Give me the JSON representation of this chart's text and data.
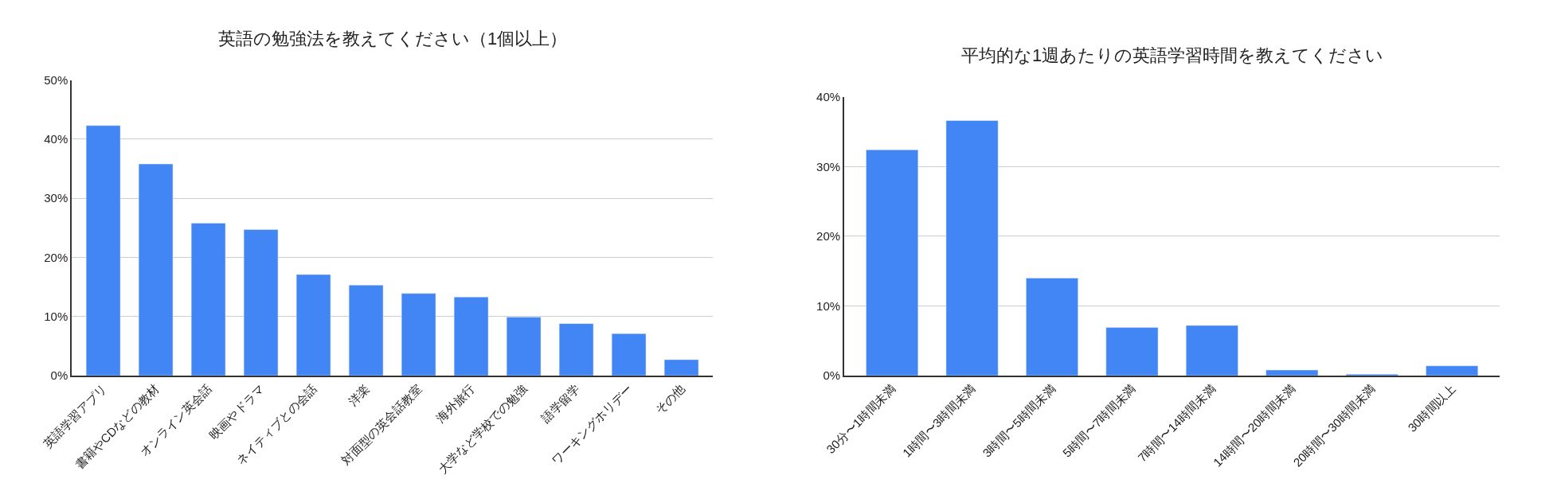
{
  "chart_data": [
    {
      "type": "bar",
      "title": "英語の勉強法を教えてください（1個以上）",
      "categories": [
        "英語学習アプリ",
        "書籍やCDなどの教材",
        "オンライン英会話",
        "映画やドラマ",
        "ネイティブとの会話",
        "洋楽",
        "対面型の英会話教室",
        "海外旅行",
        "大学など学校での勉強",
        "語学留学",
        "ワーキングホリデー",
        "その他"
      ],
      "values": [
        42.3,
        35.8,
        25.8,
        24.7,
        17.1,
        15.3,
        13.9,
        13.3,
        9.9,
        8.8,
        7.1,
        2.7
      ],
      "color": "#4285f4",
      "ylim": [
        0,
        50
      ],
      "yticks": [
        {
          "value": 0,
          "label": "0%"
        },
        {
          "value": 10,
          "label": "10%"
        },
        {
          "value": 20,
          "label": "20%"
        },
        {
          "value": 30,
          "label": "30%"
        },
        {
          "value": 40,
          "label": "40%"
        },
        {
          "value": 50,
          "label": "50%"
        }
      ],
      "grid": "y"
    },
    {
      "type": "bar",
      "title": "平均的な1週あたりの英語学習時間を教えてください",
      "categories": [
        "30分〜1時間未満",
        "1時間〜3時間未満",
        "3時間〜5時間未満",
        "5時間〜7時間未満",
        "7時間〜14時間未満",
        "14時間〜20時間未満",
        "20時間〜30時間未満",
        "30時間以上"
      ],
      "values": [
        32.4,
        36.6,
        14.0,
        6.9,
        7.2,
        0.8,
        0.2,
        1.4
      ],
      "color": "#4285f4",
      "ylim": [
        0,
        40
      ],
      "yticks": [
        {
          "value": 0,
          "label": "0%"
        },
        {
          "value": 10,
          "label": "10%"
        },
        {
          "value": 20,
          "label": "20%"
        },
        {
          "value": 30,
          "label": "30%"
        },
        {
          "value": 40,
          "label": "40%"
        }
      ],
      "grid": "y"
    }
  ]
}
